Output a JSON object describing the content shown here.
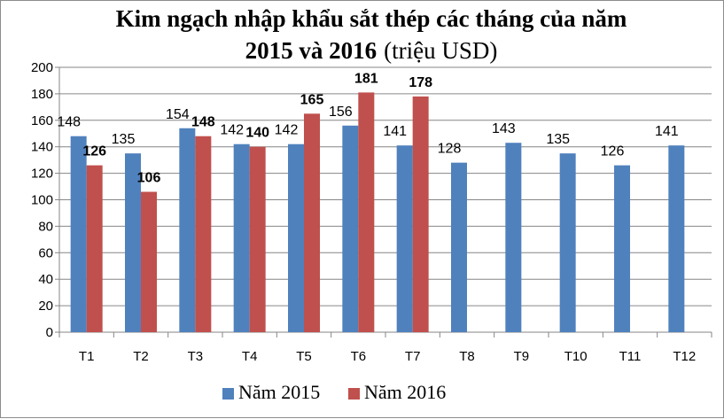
{
  "chart_data": {
    "type": "bar",
    "title_main": "Kim ngạch nhập khẩu sắt thép các tháng của năm",
    "title_line2_bold": "2015 và 2016",
    "title_line2_unit": "(triệu USD)",
    "xlabel": "",
    "ylabel": "",
    "ylim": [
      0,
      200
    ],
    "yticks": [
      0,
      20,
      40,
      60,
      80,
      100,
      120,
      140,
      160,
      180,
      200
    ],
    "grid": true,
    "legend_position": "bottom",
    "categories": [
      "T1",
      "T2",
      "T3",
      "T4",
      "T5",
      "T6",
      "T7",
      "T8",
      "T9",
      "T10",
      "T11",
      "T12"
    ],
    "series": [
      {
        "name": "Năm 2015",
        "color": "#4f81bd",
        "label_bold": false,
        "values": [
          148,
          135,
          154,
          142,
          142,
          156,
          141,
          128,
          143,
          135,
          126,
          141
        ]
      },
      {
        "name": "Năm 2016",
        "color": "#c0504d",
        "label_bold": true,
        "values": [
          126,
          106,
          148,
          140,
          165,
          181,
          178,
          null,
          null,
          null,
          null,
          null
        ]
      }
    ]
  }
}
